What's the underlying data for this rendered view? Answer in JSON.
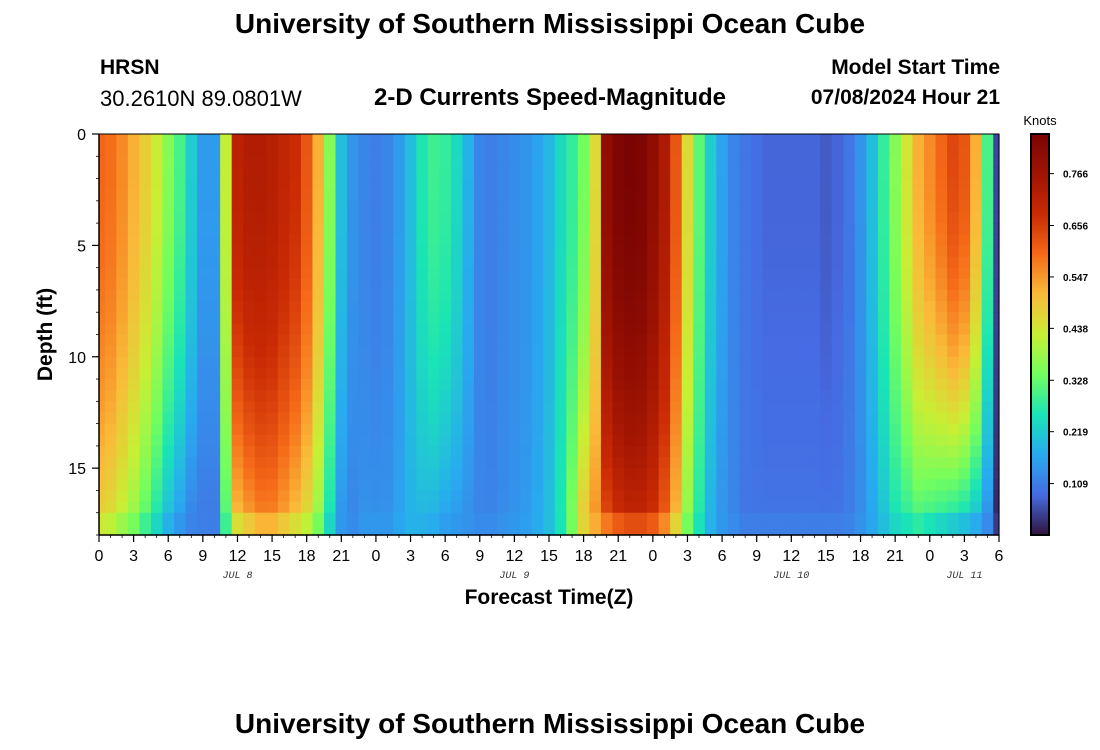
{
  "header": {
    "title": "University of Southern Mississippi Ocean Cube",
    "station": "HRSN",
    "coordinates": "30.2610N  89.0801W",
    "subtitle": "2-D Currents Speed-Magnitude",
    "model_start_label": "Model Start Time",
    "model_start_value": "07/08/2024 Hour 21"
  },
  "footer": {
    "title": "University of Southern Mississippi Ocean Cube"
  },
  "chart_data": {
    "type": "heatmap",
    "title": "2-D Currents Speed-Magnitude",
    "xlabel": "Forecast Time(Z)",
    "ylabel": "Depth (ft)",
    "x_range_hours": [
      0,
      78
    ],
    "x_tick_step_hours": 3,
    "x_tick_labels": [
      "0",
      "3",
      "6",
      "9",
      "12",
      "15",
      "18",
      "21",
      "0",
      "3",
      "6",
      "9",
      "12",
      "15",
      "18",
      "21",
      "0",
      "3",
      "6",
      "9",
      "12",
      "15",
      "18",
      "21",
      "0",
      "3",
      "6"
    ],
    "day_labels": [
      {
        "text": "JUL 8",
        "hour": 12
      },
      {
        "text": "JUL 9",
        "hour": 36
      },
      {
        "text": "JUL 10",
        "hour": 60
      },
      {
        "text": "JUL 11",
        "hour": 75
      }
    ],
    "y_range_ft": [
      0,
      18
    ],
    "y_ticks": [
      0,
      5,
      10,
      15
    ],
    "colorbar": {
      "title": "Knots",
      "min": 0.0,
      "max": 0.85,
      "labels": [
        "0.766",
        "0.656",
        "0.547",
        "0.438",
        "0.328",
        "0.219",
        "0.109"
      ],
      "label_values": [
        0.766,
        0.656,
        0.547,
        0.438,
        0.328,
        0.219,
        0.109
      ]
    },
    "profile_hours": [
      0,
      1,
      2,
      3,
      4,
      5,
      6,
      7,
      8,
      9,
      10,
      11,
      12,
      13,
      14,
      15,
      16,
      17,
      18,
      19,
      20,
      21,
      22,
      23,
      24,
      25,
      26,
      27,
      28,
      29,
      30,
      31,
      32,
      33,
      34,
      35,
      36,
      37,
      38,
      39,
      40,
      41,
      42,
      43,
      44,
      45,
      46,
      47,
      48,
      49,
      50,
      51,
      52,
      53,
      54,
      55,
      56,
      57,
      58,
      59,
      60,
      61,
      62,
      63,
      64,
      65,
      66,
      67,
      68,
      69,
      70,
      71,
      72,
      73,
      74,
      75,
      76,
      77,
      78
    ],
    "surface_speed_knots": [
      0.6,
      0.59,
      0.56,
      0.52,
      0.48,
      0.43,
      0.36,
      0.3,
      0.22,
      0.15,
      0.15,
      0.42,
      0.71,
      0.73,
      0.73,
      0.72,
      0.7,
      0.68,
      0.62,
      0.52,
      0.36,
      0.2,
      0.14,
      0.12,
      0.11,
      0.12,
      0.15,
      0.2,
      0.26,
      0.29,
      0.28,
      0.24,
      0.18,
      0.12,
      0.11,
      0.12,
      0.13,
      0.14,
      0.16,
      0.19,
      0.24,
      0.28,
      0.34,
      0.46,
      0.8,
      0.84,
      0.85,
      0.84,
      0.8,
      0.74,
      0.62,
      0.46,
      0.32,
      0.22,
      0.16,
      0.12,
      0.1,
      0.09,
      0.08,
      0.08,
      0.08,
      0.08,
      0.08,
      0.07,
      0.08,
      0.1,
      0.14,
      0.2,
      0.28,
      0.36,
      0.44,
      0.52,
      0.56,
      0.6,
      0.64,
      0.62,
      0.52,
      0.3,
      0.05
    ],
    "near_bottom_speed_knots": [
      0.46,
      0.44,
      0.4,
      0.36,
      0.3,
      0.24,
      0.18,
      0.14,
      0.11,
      0.1,
      0.1,
      0.3,
      0.48,
      0.52,
      0.55,
      0.55,
      0.52,
      0.48,
      0.44,
      0.36,
      0.24,
      0.14,
      0.12,
      0.14,
      0.14,
      0.14,
      0.16,
      0.18,
      0.18,
      0.17,
      0.15,
      0.14,
      0.13,
      0.12,
      0.12,
      0.13,
      0.14,
      0.15,
      0.17,
      0.2,
      0.26,
      0.36,
      0.5,
      0.56,
      0.62,
      0.66,
      0.68,
      0.68,
      0.66,
      0.6,
      0.5,
      0.36,
      0.26,
      0.18,
      0.14,
      0.12,
      0.1,
      0.1,
      0.1,
      0.1,
      0.1,
      0.1,
      0.1,
      0.1,
      0.1,
      0.11,
      0.13,
      0.16,
      0.2,
      0.24,
      0.26,
      0.28,
      0.26,
      0.24,
      0.22,
      0.2,
      0.17,
      0.12,
      0.02
    ]
  }
}
